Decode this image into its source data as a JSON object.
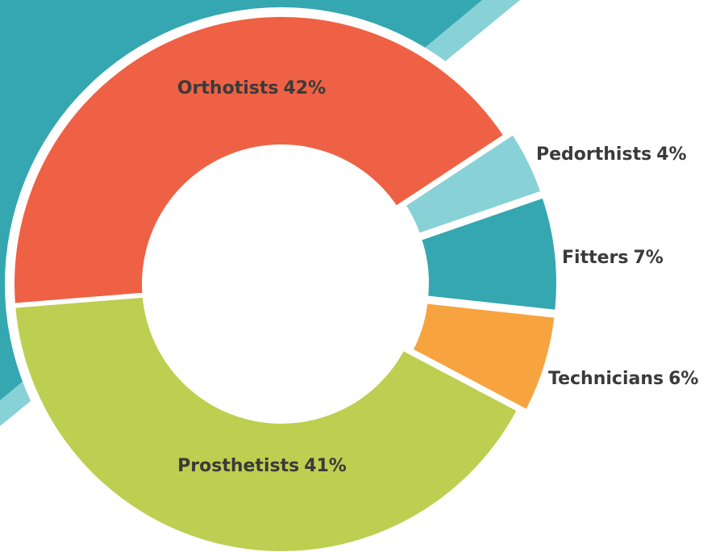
{
  "chart_data": {
    "type": "donut",
    "categories": [
      "Orthotists",
      "Pedorthists",
      "Fitters",
      "Technicians",
      "Prosthetists"
    ],
    "values": [
      42,
      4,
      7,
      6,
      41
    ],
    "value_labels": [
      "42%",
      "4%",
      "7%",
      "6%",
      "41%"
    ],
    "colors": [
      "#ef6144",
      "#88d1d6",
      "#35a7b0",
      "#f7a440",
      "#bccf50"
    ]
  }
}
